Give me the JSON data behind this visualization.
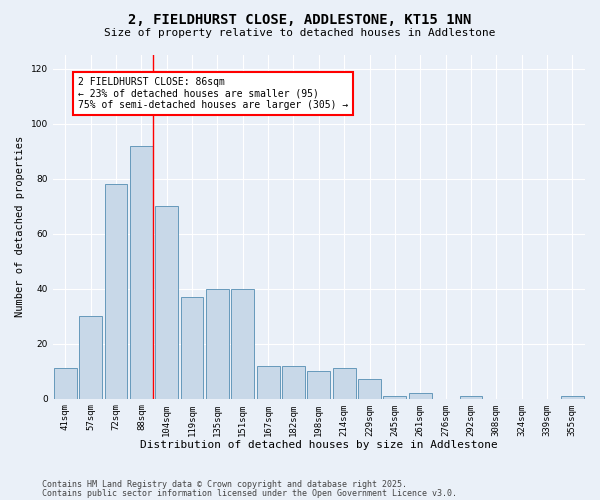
{
  "title": "2, FIELDHURST CLOSE, ADDLESTONE, KT15 1NN",
  "subtitle": "Size of property relative to detached houses in Addlestone",
  "xlabel": "Distribution of detached houses by size in Addlestone",
  "ylabel": "Number of detached properties",
  "categories": [
    "41sqm",
    "57sqm",
    "72sqm",
    "88sqm",
    "104sqm",
    "119sqm",
    "135sqm",
    "151sqm",
    "167sqm",
    "182sqm",
    "198sqm",
    "214sqm",
    "229sqm",
    "245sqm",
    "261sqm",
    "276sqm",
    "292sqm",
    "308sqm",
    "324sqm",
    "339sqm",
    "355sqm"
  ],
  "values": [
    11,
    30,
    78,
    92,
    70,
    37,
    40,
    40,
    12,
    12,
    10,
    11,
    7,
    1,
    2,
    0,
    1,
    0,
    0,
    0,
    1
  ],
  "bar_color": "#c8d8e8",
  "bar_edge_color": "#6699bb",
  "red_line_index": 3,
  "annotation_text": "2 FIELDHURST CLOSE: 86sqm\n← 23% of detached houses are smaller (95)\n75% of semi-detached houses are larger (305) →",
  "annotation_box_color": "white",
  "annotation_box_edge_color": "red",
  "ylim": [
    0,
    125
  ],
  "yticks": [
    0,
    20,
    40,
    60,
    80,
    100,
    120
  ],
  "bg_color": "#eaf0f8",
  "plot_bg_color": "#eaf0f8",
  "grid_color": "white",
  "footer1": "Contains HM Land Registry data © Crown copyright and database right 2025.",
  "footer2": "Contains public sector information licensed under the Open Government Licence v3.0.",
  "title_fontsize": 10,
  "subtitle_fontsize": 8,
  "xlabel_fontsize": 8,
  "ylabel_fontsize": 7.5,
  "tick_fontsize": 6.5,
  "annot_fontsize": 7,
  "footer_fontsize": 6
}
